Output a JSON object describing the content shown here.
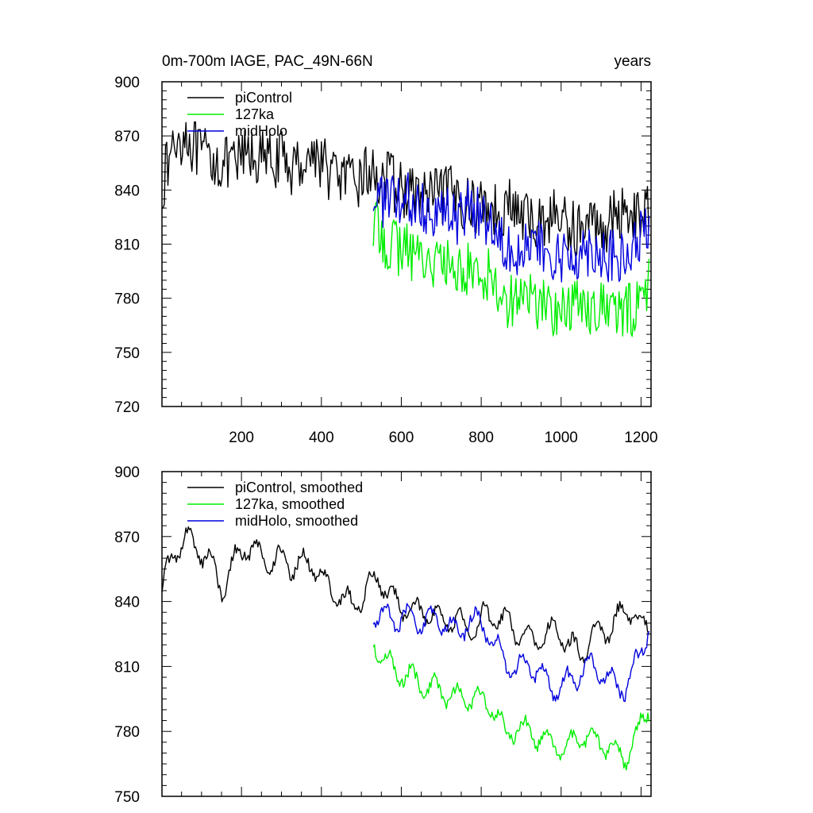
{
  "chart_data": [
    {
      "id": "top",
      "type": "line",
      "title": "0m-700m IAGE, PAC_49N-66N",
      "units": "years",
      "xlabel": "",
      "ylabel": "",
      "xlim": [
        1,
        1225
      ],
      "ylim": [
        720,
        900
      ],
      "yticks": [
        720,
        750,
        780,
        810,
        840,
        870,
        900
      ],
      "xticks": [
        200,
        400,
        600,
        800,
        1000,
        1200
      ],
      "series": [
        {
          "name": "piControl",
          "color": "#000000",
          "x": [
            1,
            30,
            60,
            90,
            120,
            150,
            180,
            210,
            240,
            270,
            300,
            330,
            360,
            390,
            420,
            450,
            480,
            510,
            540,
            570,
            600,
            630,
            660,
            690,
            720,
            750,
            780,
            810,
            840,
            870,
            900,
            930,
            960,
            990,
            1020,
            1050,
            1080,
            1110,
            1140,
            1170,
            1200,
            1220
          ],
          "values": [
            842,
            865,
            872,
            860,
            858,
            855,
            852,
            860,
            858,
            856,
            857,
            852,
            858,
            860,
            850,
            848,
            842,
            850,
            847,
            846,
            840,
            838,
            837,
            836,
            838,
            835,
            830,
            833,
            828,
            832,
            825,
            822,
            824,
            826,
            820,
            818,
            822,
            820,
            826,
            830,
            825,
            828
          ]
        },
        {
          "name": "127ka",
          "color": "#00ee00",
          "x": [
            530,
            560,
            590,
            620,
            650,
            680,
            710,
            740,
            770,
            800,
            830,
            860,
            890,
            920,
            950,
            980,
            1010,
            1040,
            1070,
            1100,
            1130,
            1160,
            1190,
            1220
          ],
          "values": [
            820,
            812,
            808,
            806,
            804,
            800,
            798,
            795,
            796,
            794,
            792,
            778,
            782,
            780,
            777,
            774,
            772,
            778,
            776,
            775,
            773,
            770,
            778,
            788
          ]
        },
        {
          "name": "midHolo",
          "color": "#0000dd",
          "x": [
            530,
            560,
            590,
            620,
            650,
            680,
            710,
            740,
            770,
            800,
            830,
            860,
            890,
            920,
            950,
            980,
            1010,
            1040,
            1070,
            1100,
            1130,
            1160,
            1190,
            1220
          ],
          "values": [
            838,
            834,
            832,
            834,
            832,
            830,
            828,
            824,
            830,
            828,
            820,
            812,
            808,
            810,
            806,
            800,
            802,
            805,
            808,
            806,
            802,
            800,
            810,
            822
          ]
        }
      ],
      "legend": [
        "piControl",
        "127ka",
        "midHolo"
      ],
      "legend_position": "top-left"
    },
    {
      "id": "bottom",
      "type": "line",
      "title": "",
      "xlabel": "",
      "ylabel": "",
      "xlim": [
        1,
        1225
      ],
      "ylim": [
        750,
        900
      ],
      "yticks": [
        750,
        780,
        810,
        840,
        870,
        900
      ],
      "xticks": [],
      "series": [
        {
          "name": "piControl, smoothed",
          "color": "#000000",
          "x": [
            1,
            30,
            60,
            90,
            120,
            150,
            180,
            210,
            240,
            270,
            300,
            330,
            360,
            390,
            420,
            450,
            480,
            510,
            540,
            570,
            600,
            630,
            660,
            690,
            720,
            750,
            780,
            810,
            840,
            870,
            900,
            930,
            960,
            990,
            1020,
            1050,
            1080,
            1110,
            1140,
            1170,
            1200,
            1220
          ],
          "values": [
            846,
            862,
            870,
            864,
            860,
            845,
            858,
            866,
            862,
            858,
            860,
            856,
            858,
            856,
            845,
            842,
            838,
            844,
            852,
            842,
            838,
            836,
            835,
            833,
            832,
            830,
            826,
            834,
            832,
            830,
            824,
            822,
            824,
            828,
            820,
            816,
            824,
            826,
            832,
            836,
            830,
            826
          ]
        },
        {
          "name": "127ka, smoothed",
          "color": "#00ee00",
          "x": [
            530,
            560,
            590,
            620,
            650,
            680,
            710,
            740,
            770,
            800,
            830,
            860,
            890,
            920,
            950,
            980,
            1010,
            1040,
            1070,
            1100,
            1130,
            1160,
            1190,
            1220
          ],
          "values": [
            822,
            812,
            808,
            805,
            802,
            800,
            798,
            795,
            796,
            794,
            792,
            778,
            782,
            780,
            777,
            774,
            770,
            778,
            776,
            775,
            772,
            768,
            778,
            792
          ]
        },
        {
          "name": "midHolo, smoothed",
          "color": "#0000dd",
          "x": [
            530,
            560,
            590,
            620,
            650,
            680,
            710,
            740,
            770,
            800,
            830,
            860,
            890,
            920,
            950,
            980,
            1010,
            1040,
            1070,
            1100,
            1130,
            1160,
            1190,
            1220
          ],
          "values": [
            836,
            832,
            832,
            834,
            830,
            832,
            830,
            825,
            832,
            830,
            822,
            812,
            808,
            812,
            806,
            800,
            802,
            806,
            810,
            808,
            802,
            800,
            812,
            829
          ]
        }
      ],
      "legend": [
        "piControl, smoothed",
        "127ka, smoothed",
        "midHolo, smoothed"
      ],
      "legend_position": "top-left"
    }
  ]
}
